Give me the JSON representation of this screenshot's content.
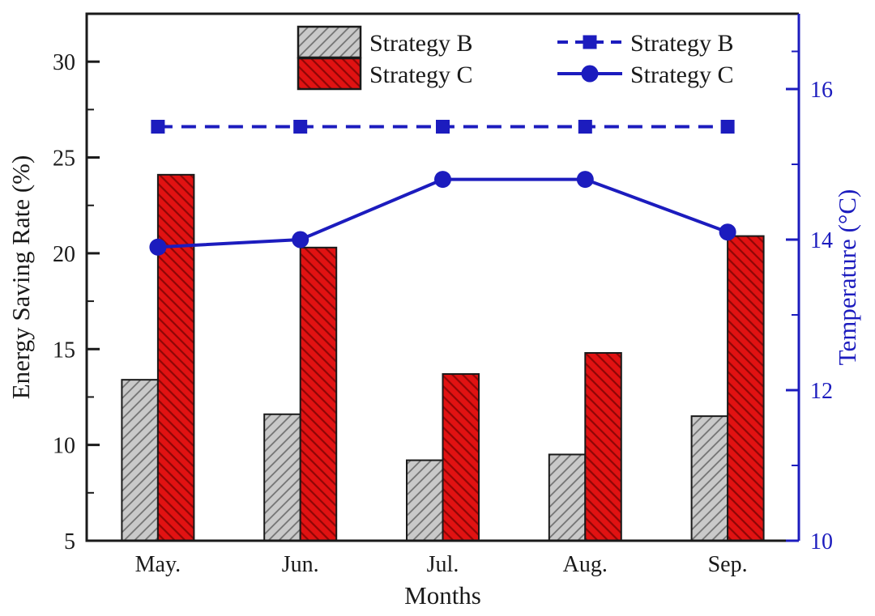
{
  "chart_data": {
    "type": "bar+line combo, dual y-axis",
    "categories": [
      "May.",
      "Jun.",
      "Jul.",
      "Aug.",
      "Sep."
    ],
    "x_axis": {
      "label": "Months"
    },
    "left_axis": {
      "label": "Energy Saving Rate (%)",
      "min": 5,
      "max": 32.5,
      "major_ticks": [
        5,
        10,
        15,
        20,
        25,
        30
      ],
      "minor_ticks": [
        7.5,
        12.5,
        17.5,
        22.5,
        27.5
      ],
      "color": "#1a1a1a"
    },
    "right_axis": {
      "label": "Temperature (°C)",
      "min": 10,
      "max": 17,
      "major_ticks": [
        10,
        12,
        14,
        16
      ],
      "minor_ticks": [
        11,
        13,
        15,
        16.5
      ],
      "color": "#1c1cbe"
    },
    "bar_series": [
      {
        "name": "Strategy B",
        "axis": "left",
        "fill": "#c9c9c9",
        "hatch": "/",
        "hatch_color": "#6f6f6f",
        "values": [
          13.4,
          11.6,
          9.2,
          9.5,
          11.5
        ]
      },
      {
        "name": "Strategy C",
        "axis": "left",
        "fill": "#e11212",
        "hatch": "\\",
        "hatch_color": "#8f0606",
        "values": [
          24.1,
          20.3,
          13.7,
          14.8,
          20.9
        ]
      }
    ],
    "line_series": [
      {
        "name": "Strategy B",
        "axis": "right",
        "style": "dashed",
        "marker": "square",
        "color": "#1c1cbe",
        "values": [
          15.5,
          15.5,
          15.5,
          15.5,
          15.5
        ]
      },
      {
        "name": "Strategy C",
        "axis": "right",
        "style": "solid",
        "marker": "circle",
        "color": "#1c1cbe",
        "values": [
          13.9,
          14.0,
          14.8,
          14.8,
          14.1
        ]
      }
    ],
    "legend": {
      "bar_entries": [
        "Strategy B",
        "Strategy C"
      ],
      "line_entries": [
        "Strategy B",
        "Strategy C"
      ],
      "position": "top inside"
    },
    "grid": "off",
    "colors": {
      "accent_blue": "#1c1cbe",
      "bar_red": "#e11212",
      "bar_gray": "#c9c9c9",
      "frame": "#1a1a1a"
    }
  }
}
